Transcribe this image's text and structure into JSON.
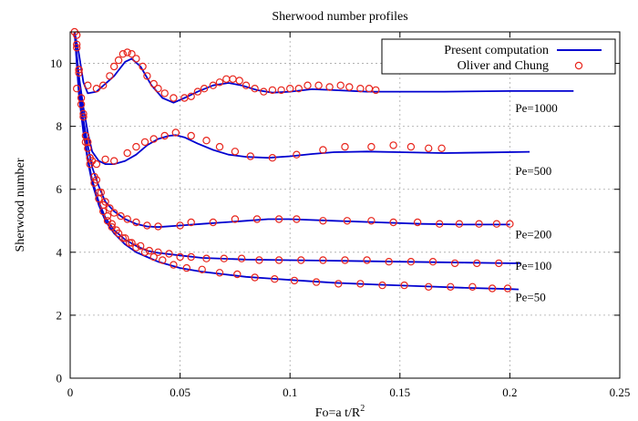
{
  "chart_data": {
    "type": "line",
    "title": "Sherwood number profiles",
    "xlabel": "Fo=a t/R",
    "xlabel_sup": "2",
    "ylabel": "Sherwood number",
    "xlim": [
      0,
      0.25
    ],
    "ylim": [
      0,
      11
    ],
    "xticks": [
      0,
      0.05,
      0.1,
      0.15,
      0.2,
      0.25
    ],
    "xtick_labels": [
      "0",
      "0.05",
      "0.1",
      "0.15",
      "0.2",
      "0.25"
    ],
    "yticks": [
      0,
      2,
      4,
      6,
      8,
      10
    ],
    "ytick_labels": [
      "0",
      "2",
      "4",
      "6",
      "8",
      "10"
    ],
    "grid": true,
    "legend_position": "top-right",
    "line_color": "#0000d0",
    "marker_color": "#e8251c",
    "legend": [
      {
        "label": "Present computation",
        "kind": "line"
      },
      {
        "label": "Oliver and Chung",
        "kind": "circle"
      }
    ],
    "curve_labels": [
      {
        "text": "Pe=1000",
        "x": 0.2025,
        "y": 8.45
      },
      {
        "text": "Pe=500",
        "x": 0.2025,
        "y": 6.45
      },
      {
        "text": "Pe=200",
        "x": 0.2025,
        "y": 4.45
      },
      {
        "text": "Pe=100",
        "x": 0.2025,
        "y": 3.45
      },
      {
        "text": "Pe=50",
        "x": 0.2025,
        "y": 2.45
      }
    ],
    "series": [
      {
        "name": "Pe=1000",
        "computation": [
          [
            0.002,
            11.0
          ],
          [
            0.004,
            10.3
          ],
          [
            0.006,
            9.4
          ],
          [
            0.008,
            9.05
          ],
          [
            0.012,
            9.1
          ],
          [
            0.02,
            9.6
          ],
          [
            0.025,
            10.05
          ],
          [
            0.028,
            10.15
          ],
          [
            0.032,
            9.9
          ],
          [
            0.037,
            9.3
          ],
          [
            0.042,
            8.9
          ],
          [
            0.047,
            8.75
          ],
          [
            0.052,
            8.9
          ],
          [
            0.058,
            9.1
          ],
          [
            0.065,
            9.3
          ],
          [
            0.072,
            9.38
          ],
          [
            0.078,
            9.3
          ],
          [
            0.085,
            9.15
          ],
          [
            0.092,
            9.07
          ],
          [
            0.1,
            9.1
          ],
          [
            0.11,
            9.18
          ],
          [
            0.12,
            9.15
          ],
          [
            0.135,
            9.1
          ],
          [
            0.15,
            9.1
          ],
          [
            0.17,
            9.1
          ],
          [
            0.2,
            9.12
          ],
          [
            0.229,
            9.12
          ]
        ],
        "reference": [
          [
            0.003,
            9.2
          ],
          [
            0.008,
            9.3
          ],
          [
            0.012,
            9.2
          ],
          [
            0.015,
            9.3
          ],
          [
            0.018,
            9.6
          ],
          [
            0.02,
            9.9
          ],
          [
            0.022,
            10.1
          ],
          [
            0.024,
            10.3
          ],
          [
            0.026,
            10.35
          ],
          [
            0.028,
            10.3
          ],
          [
            0.03,
            10.15
          ],
          [
            0.033,
            9.9
          ],
          [
            0.035,
            9.6
          ],
          [
            0.038,
            9.35
          ],
          [
            0.04,
            9.2
          ],
          [
            0.043,
            9.05
          ],
          [
            0.047,
            8.9
          ],
          [
            0.052,
            8.9
          ],
          [
            0.055,
            8.95
          ],
          [
            0.058,
            9.1
          ],
          [
            0.061,
            9.2
          ],
          [
            0.065,
            9.3
          ],
          [
            0.068,
            9.4
          ],
          [
            0.071,
            9.5
          ],
          [
            0.074,
            9.5
          ],
          [
            0.077,
            9.45
          ],
          [
            0.08,
            9.3
          ],
          [
            0.084,
            9.2
          ],
          [
            0.088,
            9.1
          ],
          [
            0.092,
            9.15
          ],
          [
            0.096,
            9.15
          ],
          [
            0.1,
            9.2
          ],
          [
            0.104,
            9.2
          ],
          [
            0.108,
            9.3
          ],
          [
            0.113,
            9.3
          ],
          [
            0.118,
            9.25
          ],
          [
            0.123,
            9.3
          ],
          [
            0.127,
            9.25
          ],
          [
            0.132,
            9.2
          ],
          [
            0.136,
            9.2
          ],
          [
            0.139,
            9.15
          ]
        ]
      },
      {
        "name": "Pe=500",
        "computation": [
          [
            0.002,
            11.0
          ],
          [
            0.004,
            9.6
          ],
          [
            0.006,
            8.6
          ],
          [
            0.008,
            7.8
          ],
          [
            0.01,
            7.2
          ],
          [
            0.013,
            6.9
          ],
          [
            0.016,
            6.8
          ],
          [
            0.02,
            6.8
          ],
          [
            0.025,
            6.9
          ],
          [
            0.03,
            7.1
          ],
          [
            0.035,
            7.4
          ],
          [
            0.04,
            7.6
          ],
          [
            0.045,
            7.7
          ],
          [
            0.048,
            7.72
          ],
          [
            0.052,
            7.65
          ],
          [
            0.058,
            7.45
          ],
          [
            0.065,
            7.25
          ],
          [
            0.072,
            7.1
          ],
          [
            0.08,
            7.03
          ],
          [
            0.09,
            7.0
          ],
          [
            0.1,
            7.05
          ],
          [
            0.11,
            7.12
          ],
          [
            0.12,
            7.18
          ],
          [
            0.135,
            7.2
          ],
          [
            0.15,
            7.18
          ],
          [
            0.17,
            7.15
          ],
          [
            0.19,
            7.17
          ],
          [
            0.209,
            7.19
          ]
        ],
        "reference": [
          [
            0.009,
            7.0
          ],
          [
            0.012,
            6.8
          ],
          [
            0.016,
            6.95
          ],
          [
            0.02,
            6.9
          ],
          [
            0.026,
            7.15
          ],
          [
            0.03,
            7.35
          ],
          [
            0.034,
            7.5
          ],
          [
            0.038,
            7.6
          ],
          [
            0.043,
            7.7
          ],
          [
            0.048,
            7.8
          ],
          [
            0.055,
            7.7
          ],
          [
            0.062,
            7.55
          ],
          [
            0.068,
            7.35
          ],
          [
            0.075,
            7.2
          ],
          [
            0.082,
            7.05
          ],
          [
            0.092,
            7.0
          ],
          [
            0.103,
            7.1
          ],
          [
            0.115,
            7.25
          ],
          [
            0.125,
            7.35
          ],
          [
            0.137,
            7.35
          ],
          [
            0.147,
            7.4
          ],
          [
            0.155,
            7.35
          ],
          [
            0.163,
            7.3
          ],
          [
            0.169,
            7.3
          ]
        ]
      },
      {
        "name": "Pe=200",
        "computation": [
          [
            0.002,
            11.0
          ],
          [
            0.004,
            9.4
          ],
          [
            0.006,
            8.2
          ],
          [
            0.008,
            7.4
          ],
          [
            0.01,
            6.7
          ],
          [
            0.013,
            6.1
          ],
          [
            0.016,
            5.6
          ],
          [
            0.02,
            5.3
          ],
          [
            0.025,
            5.05
          ],
          [
            0.03,
            4.9
          ],
          [
            0.035,
            4.82
          ],
          [
            0.04,
            4.8
          ],
          [
            0.05,
            4.85
          ],
          [
            0.06,
            4.9
          ],
          [
            0.07,
            4.95
          ],
          [
            0.08,
            5.0
          ],
          [
            0.09,
            5.05
          ],
          [
            0.1,
            5.05
          ],
          [
            0.12,
            5.0
          ],
          [
            0.14,
            4.95
          ],
          [
            0.16,
            4.9
          ],
          [
            0.18,
            4.88
          ],
          [
            0.2,
            4.88
          ]
        ],
        "reference": [
          [
            0.003,
            10.6
          ],
          [
            0.004,
            9.8
          ],
          [
            0.006,
            8.4
          ],
          [
            0.008,
            7.5
          ],
          [
            0.01,
            6.9
          ],
          [
            0.012,
            6.3
          ],
          [
            0.014,
            5.9
          ],
          [
            0.016,
            5.6
          ],
          [
            0.018,
            5.4
          ],
          [
            0.02,
            5.25
          ],
          [
            0.023,
            5.15
          ],
          [
            0.026,
            5.05
          ],
          [
            0.03,
            4.95
          ],
          [
            0.035,
            4.85
          ],
          [
            0.04,
            4.82
          ],
          [
            0.05,
            4.85
          ],
          [
            0.055,
            4.95
          ],
          [
            0.065,
            4.95
          ],
          [
            0.075,
            5.05
          ],
          [
            0.085,
            5.05
          ],
          [
            0.095,
            5.05
          ],
          [
            0.103,
            5.05
          ],
          [
            0.115,
            5.0
          ],
          [
            0.126,
            5.0
          ],
          [
            0.137,
            5.0
          ],
          [
            0.147,
            4.95
          ],
          [
            0.158,
            4.95
          ],
          [
            0.168,
            4.9
          ],
          [
            0.177,
            4.9
          ],
          [
            0.186,
            4.9
          ],
          [
            0.194,
            4.9
          ],
          [
            0.2,
            4.9
          ]
        ]
      },
      {
        "name": "Pe=100",
        "computation": [
          [
            0.002,
            11.0
          ],
          [
            0.004,
            9.2
          ],
          [
            0.006,
            8.0
          ],
          [
            0.008,
            7.0
          ],
          [
            0.01,
            6.3
          ],
          [
            0.013,
            5.6
          ],
          [
            0.016,
            5.1
          ],
          [
            0.02,
            4.7
          ],
          [
            0.025,
            4.4
          ],
          [
            0.03,
            4.2
          ],
          [
            0.035,
            4.05
          ],
          [
            0.04,
            3.98
          ],
          [
            0.05,
            3.9
          ],
          [
            0.06,
            3.82
          ],
          [
            0.08,
            3.77
          ],
          [
            0.1,
            3.75
          ],
          [
            0.12,
            3.73
          ],
          [
            0.15,
            3.7
          ],
          [
            0.18,
            3.67
          ],
          [
            0.2,
            3.65
          ],
          [
            0.205,
            3.65
          ]
        ],
        "reference": [
          [
            0.003,
            10.9
          ],
          [
            0.004,
            9.8
          ],
          [
            0.005,
            8.7
          ],
          [
            0.007,
            7.5
          ],
          [
            0.009,
            6.8
          ],
          [
            0.011,
            6.2
          ],
          [
            0.013,
            5.7
          ],
          [
            0.015,
            5.3
          ],
          [
            0.017,
            5.0
          ],
          [
            0.019,
            4.8
          ],
          [
            0.022,
            4.6
          ],
          [
            0.025,
            4.45
          ],
          [
            0.028,
            4.3
          ],
          [
            0.032,
            4.2
          ],
          [
            0.036,
            4.05
          ],
          [
            0.04,
            4.0
          ],
          [
            0.045,
            3.95
          ],
          [
            0.05,
            3.85
          ],
          [
            0.055,
            3.85
          ],
          [
            0.062,
            3.8
          ],
          [
            0.07,
            3.8
          ],
          [
            0.078,
            3.8
          ],
          [
            0.086,
            3.75
          ],
          [
            0.095,
            3.75
          ],
          [
            0.105,
            3.75
          ],
          [
            0.115,
            3.75
          ],
          [
            0.125,
            3.75
          ],
          [
            0.135,
            3.75
          ],
          [
            0.145,
            3.7
          ],
          [
            0.155,
            3.7
          ],
          [
            0.165,
            3.7
          ],
          [
            0.175,
            3.65
          ],
          [
            0.185,
            3.65
          ],
          [
            0.195,
            3.65
          ]
        ]
      },
      {
        "name": "Pe=50",
        "computation": [
          [
            0.002,
            11.0
          ],
          [
            0.004,
            9.0
          ],
          [
            0.006,
            7.8
          ],
          [
            0.008,
            6.9
          ],
          [
            0.01,
            6.2
          ],
          [
            0.013,
            5.5
          ],
          [
            0.016,
            5.0
          ],
          [
            0.02,
            4.6
          ],
          [
            0.025,
            4.25
          ],
          [
            0.03,
            4.0
          ],
          [
            0.035,
            3.85
          ],
          [
            0.04,
            3.7
          ],
          [
            0.05,
            3.5
          ],
          [
            0.06,
            3.38
          ],
          [
            0.07,
            3.3
          ],
          [
            0.08,
            3.22
          ],
          [
            0.09,
            3.17
          ],
          [
            0.1,
            3.12
          ],
          [
            0.12,
            3.03
          ],
          [
            0.14,
            2.97
          ],
          [
            0.16,
            2.92
          ],
          [
            0.18,
            2.87
          ],
          [
            0.2,
            2.83
          ],
          [
            0.204,
            2.82
          ]
        ],
        "reference": [
          [
            0.002,
            11.0
          ],
          [
            0.003,
            10.5
          ],
          [
            0.004,
            9.7
          ],
          [
            0.005,
            8.9
          ],
          [
            0.006,
            8.3
          ],
          [
            0.007,
            7.7
          ],
          [
            0.008,
            7.3
          ],
          [
            0.009,
            7.0
          ],
          [
            0.011,
            6.4
          ],
          [
            0.013,
            5.9
          ],
          [
            0.015,
            5.5
          ],
          [
            0.017,
            5.15
          ],
          [
            0.019,
            4.9
          ],
          [
            0.021,
            4.7
          ],
          [
            0.024,
            4.45
          ],
          [
            0.027,
            4.3
          ],
          [
            0.03,
            4.15
          ],
          [
            0.034,
            4.0
          ],
          [
            0.038,
            3.85
          ],
          [
            0.042,
            3.75
          ],
          [
            0.047,
            3.6
          ],
          [
            0.053,
            3.5
          ],
          [
            0.06,
            3.45
          ],
          [
            0.068,
            3.35
          ],
          [
            0.076,
            3.3
          ],
          [
            0.084,
            3.2
          ],
          [
            0.093,
            3.15
          ],
          [
            0.102,
            3.1
          ],
          [
            0.112,
            3.05
          ],
          [
            0.122,
            3.0
          ],
          [
            0.132,
            3.0
          ],
          [
            0.142,
            2.95
          ],
          [
            0.152,
            2.95
          ],
          [
            0.163,
            2.9
          ],
          [
            0.173,
            2.9
          ],
          [
            0.183,
            2.9
          ],
          [
            0.192,
            2.85
          ],
          [
            0.199,
            2.85
          ]
        ]
      }
    ]
  }
}
